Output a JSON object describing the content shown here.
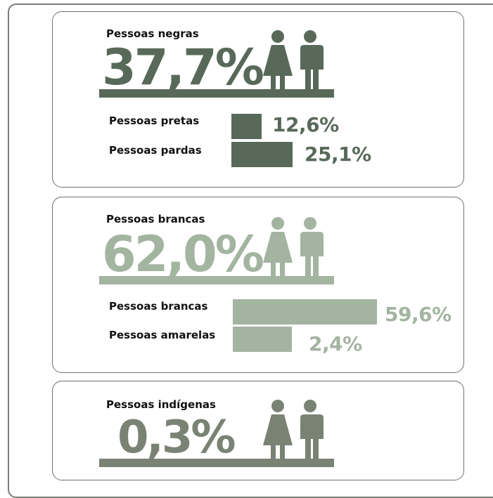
{
  "colors": {
    "negras": "#58695a",
    "brancas": "#a3b4a1",
    "indigenas": "#7a8274"
  },
  "chart_data": {
    "type": "bar",
    "groups": [
      {
        "title": "Pessoas negras",
        "total_value": 37.7,
        "total_label": "37,7%",
        "color": "#58695a",
        "categories": [
          "Pessoas pretas",
          "Pessoas pardas"
        ],
        "values": [
          12.6,
          25.1
        ],
        "value_labels": [
          "12,6%",
          "25,1%"
        ]
      },
      {
        "title": "Pessoas brancas",
        "total_value": 62.0,
        "total_label": "62,0%",
        "color": "#a3b4a1",
        "categories": [
          "Pessoas brancas",
          "Pessoas amarelas"
        ],
        "values": [
          59.6,
          2.4
        ],
        "value_labels": [
          "59,6%",
          "2,4%"
        ]
      },
      {
        "title": "Pessoas indígenas",
        "total_value": 0.3,
        "total_label": "0,3%",
        "color": "#7a8274",
        "categories": [],
        "values": [],
        "value_labels": []
      }
    ]
  }
}
